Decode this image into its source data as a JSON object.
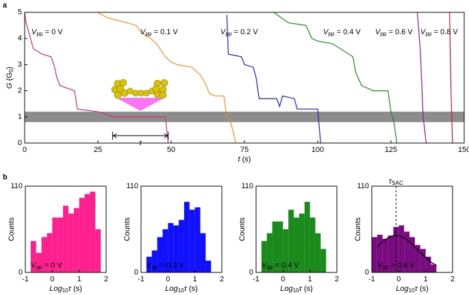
{
  "chart_data": [
    {
      "type": "line",
      "panel_label": "a",
      "xlabel": "t (s)",
      "ylabel": "G (G0)",
      "xlim": [
        0,
        150
      ],
      "ylim": [
        0,
        5
      ],
      "xticks": [
        0,
        25,
        50,
        75,
        100,
        125,
        150
      ],
      "yticks": [
        0,
        1,
        2,
        3,
        4,
        5
      ],
      "band": [
        0.8,
        1.2
      ],
      "annotation": {
        "text": "τ",
        "x": [
          30,
          49
        ],
        "y": 0.28
      },
      "series": [
        {
          "name": "Vpp = 0 V",
          "color": "#d6287f",
          "x": [
            0,
            0.5,
            2,
            3,
            6,
            9,
            10,
            11,
            12,
            17,
            18,
            25,
            28,
            30,
            48,
            49
          ],
          "values": [
            5,
            4.6,
            4.0,
            3.6,
            3.4,
            3.3,
            3.0,
            2.5,
            2.2,
            2.0,
            1.3,
            1.2,
            1.1,
            1.0,
            1.0,
            0
          ]
        },
        {
          "name": "Vpp = 0.1 V",
          "color": "#ef8f1c",
          "x": [
            25,
            28,
            35,
            38,
            40,
            43,
            45,
            48,
            50,
            52,
            57,
            60,
            62,
            63,
            65,
            68,
            69,
            70,
            71,
            72
          ],
          "values": [
            5,
            4.8,
            4.6,
            4.5,
            4.2,
            4.0,
            3.8,
            3.3,
            3.1,
            3.0,
            2.9,
            2.6,
            2.2,
            1.9,
            1.8,
            1.8,
            1.0,
            0.9,
            0.5,
            0
          ]
        },
        {
          "name": "Vpp = 0.2 V",
          "color": "#1a1acc",
          "x": [
            69,
            69.5,
            74,
            75,
            78,
            79,
            80,
            86,
            87,
            88,
            92,
            93,
            100,
            101
          ],
          "values": [
            4.9,
            3.4,
            3.3,
            3.0,
            2.9,
            2.5,
            1.7,
            1.7,
            1.4,
            1.8,
            1.7,
            1.3,
            1.3,
            0
          ]
        },
        {
          "name": "Vpp = 0.4 V",
          "color": "#1e8a1e",
          "x": [
            85,
            90,
            96,
            98,
            100,
            105,
            112,
            113,
            115,
            119,
            124,
            125,
            126,
            127
          ],
          "values": [
            5,
            4.6,
            4.5,
            4.0,
            3.9,
            3.8,
            3.3,
            2.7,
            2.2,
            2.0,
            2.0,
            1.2,
            0.8,
            0
          ]
        },
        {
          "name": "Vpp = 0.6 V",
          "color": "#8a1a9a",
          "x": [
            134,
            135,
            136,
            137
          ],
          "values": [
            5,
            3.6,
            1.0,
            0
          ]
        },
        {
          "name": "Vpp = 0.8 V",
          "color": "#d01818",
          "x": [
            145,
            145.5,
            146
          ],
          "values": [
            5,
            2.0,
            0
          ]
        }
      ]
    },
    {
      "type": "histogram",
      "panel_label": "b",
      "label": "Vpp = 0 V",
      "color": "#ff1f8e",
      "xlabel": "Log10τ (s)",
      "ylabel": "Counts",
      "xlim": [
        -1,
        2
      ],
      "ylim": [
        0,
        110
      ],
      "xticks": [
        -1,
        0,
        1,
        2
      ],
      "yticks": [
        0,
        110
      ],
      "bins": [
        -0.8,
        -0.6,
        -0.4,
        -0.2,
        0,
        0.2,
        0.4,
        0.6,
        0.8,
        1.0,
        1.2,
        1.4,
        1.6,
        1.8
      ],
      "counts": [
        40,
        25,
        45,
        50,
        70,
        70,
        85,
        75,
        82,
        95,
        100,
        103,
        55
      ]
    },
    {
      "type": "histogram",
      "label": "Vpp = 0.2 V",
      "color": "#1010ff",
      "xlabel": "Log10τ (s)",
      "ylabel": "Counts",
      "xlim": [
        -1,
        2
      ],
      "ylim": [
        0,
        110
      ],
      "xticks": [
        -1,
        0,
        1,
        2
      ],
      "yticks": [
        0,
        110
      ],
      "bins": [
        -0.8,
        -0.6,
        -0.4,
        -0.2,
        0,
        0.2,
        0.4,
        0.6,
        0.8,
        1.0,
        1.2,
        1.4,
        1.6
      ],
      "counts": [
        20,
        28,
        45,
        55,
        63,
        60,
        67,
        90,
        80,
        83,
        50,
        15
      ]
    },
    {
      "type": "histogram",
      "label": "Vpp = 0.4 V",
      "color": "#1a8a1a",
      "xlabel": "Log10τ (s)",
      "ylabel": "Counts",
      "xlim": [
        -1,
        2
      ],
      "ylim": [
        0,
        110
      ],
      "xticks": [
        -1,
        0,
        1,
        2
      ],
      "yticks": [
        0,
        110
      ],
      "bins": [
        -0.8,
        -0.6,
        -0.4,
        -0.2,
        0,
        0.2,
        0.4,
        0.6,
        0.8,
        1.0,
        1.2,
        1.4,
        1.6
      ],
      "counts": [
        40,
        50,
        65,
        65,
        55,
        80,
        70,
        75,
        90,
        70,
        50,
        30
      ]
    },
    {
      "type": "histogram",
      "label": "Vpp = 0.6 V",
      "color": "#7a0a80",
      "xlabel": "Log10τ (s)",
      "ylabel": "Counts",
      "xlim": [
        -1,
        2
      ],
      "ylim": [
        0,
        110
      ],
      "xticks": [
        -1,
        0,
        1,
        2
      ],
      "yticks": [
        0,
        110
      ],
      "bins": [
        -1.0,
        -0.8,
        -0.6,
        -0.4,
        -0.2,
        0,
        0.2,
        0.4,
        0.6,
        0.8,
        1.0,
        1.2,
        1.4
      ],
      "counts": [
        45,
        48,
        43,
        47,
        58,
        60,
        52,
        45,
        35,
        30,
        20,
        10
      ],
      "fit": {
        "color": "#000000",
        "x": [
          -0.8,
          -0.6,
          -0.4,
          -0.2,
          -0.1,
          0,
          0.2,
          0.4,
          0.6,
          0.8,
          1.0,
          1.2,
          1.4
        ],
        "values": [
          32,
          39,
          44,
          47,
          47.5,
          47,
          44,
          39,
          32,
          25,
          19,
          13,
          9
        ]
      },
      "marker": {
        "x": -0.1,
        "label": "τSAC"
      }
    }
  ]
}
